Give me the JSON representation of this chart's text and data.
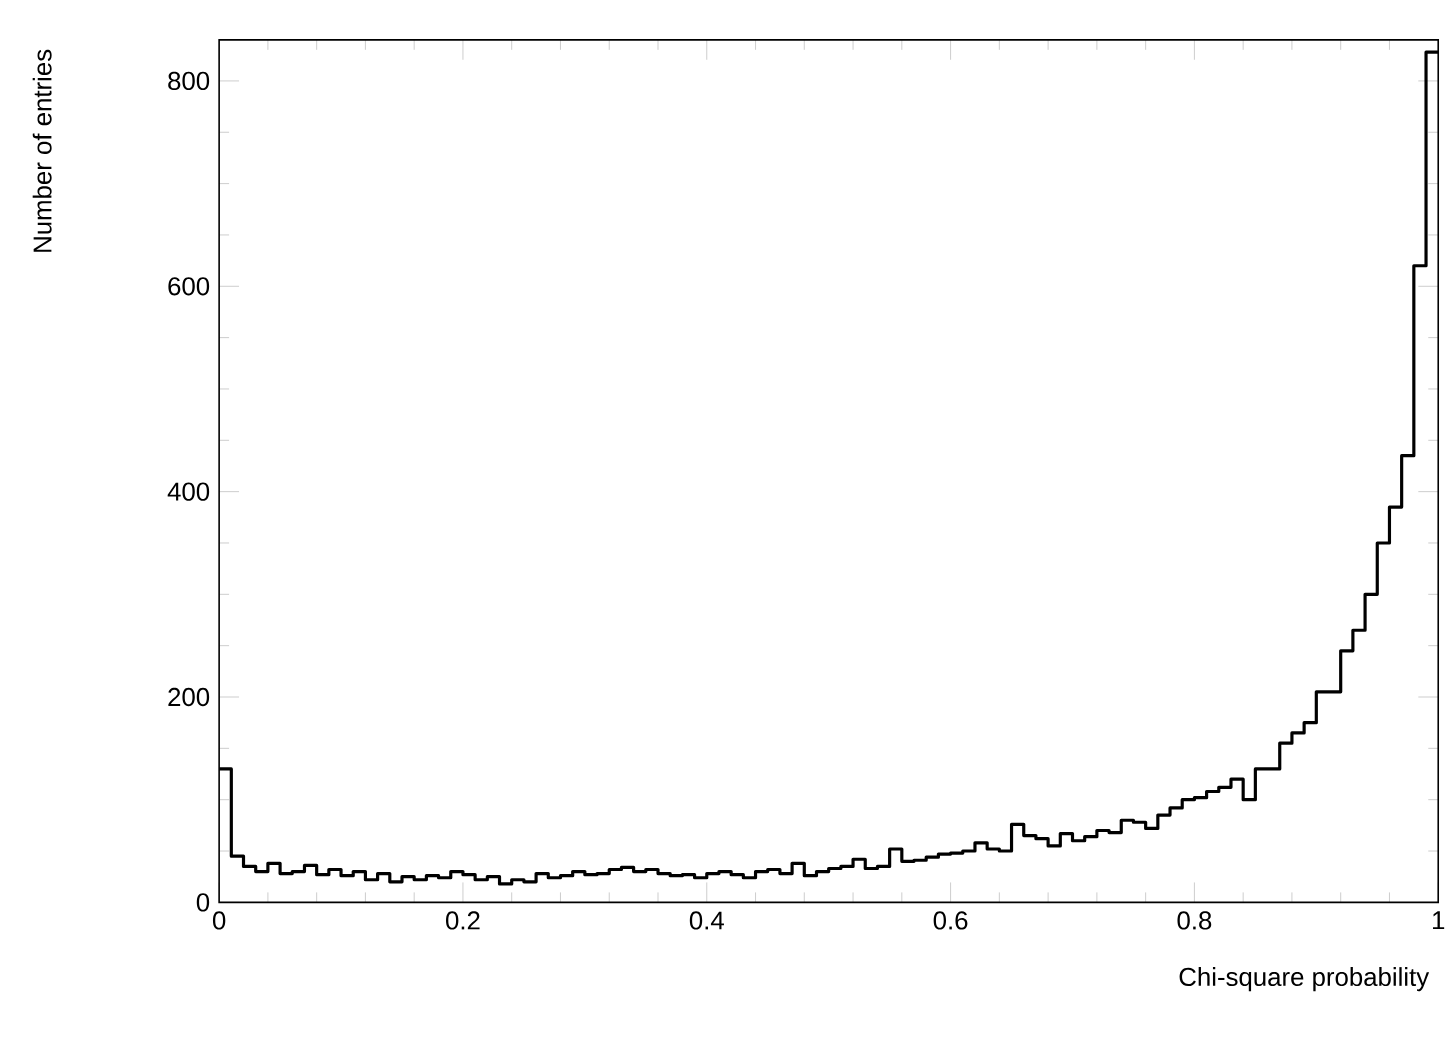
{
  "chart_data": {
    "type": "histogram",
    "xlabel": "Chi-square probability",
    "ylabel": "Number of entries",
    "bins": [
      0,
      0.01,
      0.02,
      0.03,
      0.04,
      0.05,
      0.06,
      0.07,
      0.08,
      0.09,
      0.1,
      0.11,
      0.12,
      0.13,
      0.14,
      0.15,
      0.16,
      0.17,
      0.18,
      0.19,
      0.2,
      0.21,
      0.22,
      0.23,
      0.24,
      0.25,
      0.26,
      0.27,
      0.28,
      0.29,
      0.3,
      0.31,
      0.32,
      0.33,
      0.34,
      0.35,
      0.36,
      0.37,
      0.38,
      0.39,
      0.4,
      0.41,
      0.42,
      0.43,
      0.44,
      0.45,
      0.46,
      0.47,
      0.48,
      0.49,
      0.5,
      0.51,
      0.52,
      0.53,
      0.54,
      0.55,
      0.56,
      0.57,
      0.58,
      0.59,
      0.6,
      0.61,
      0.62,
      0.63,
      0.64,
      0.65,
      0.66,
      0.67,
      0.68,
      0.69,
      0.7,
      0.71,
      0.72,
      0.73,
      0.74,
      0.75,
      0.76,
      0.77,
      0.78,
      0.79,
      0.8,
      0.81,
      0.82,
      0.83,
      0.84,
      0.85,
      0.86,
      0.87,
      0.88,
      0.89,
      0.9,
      0.91,
      0.92,
      0.93,
      0.94,
      0.95,
      0.96,
      0.97,
      0.98,
      0.99,
      1
    ],
    "values": [
      130,
      45,
      35,
      30,
      38,
      28,
      30,
      36,
      27,
      32,
      26,
      30,
      22,
      28,
      20,
      25,
      22,
      26,
      24,
      30,
      27,
      22,
      25,
      18,
      22,
      20,
      28,
      24,
      26,
      30,
      27,
      28,
      32,
      34,
      30,
      32,
      28,
      26,
      27,
      24,
      28,
      30,
      27,
      24,
      30,
      32,
      28,
      38,
      26,
      30,
      33,
      35,
      42,
      33,
      35,
      52,
      40,
      41,
      44,
      47,
      48,
      50,
      58,
      52,
      50,
      76,
      65,
      62,
      55,
      67,
      60,
      64,
      70,
      68,
      80,
      78,
      72,
      85,
      92,
      100,
      102,
      108,
      112,
      120,
      100,
      130,
      130,
      155,
      165,
      175,
      205,
      205,
      245,
      265,
      300,
      350,
      385,
      435,
      620,
      828
    ],
    "color": "#000000",
    "xlim": [
      0,
      1
    ],
    "ylim": [
      0,
      840
    ],
    "xticks": [
      0,
      0.2,
      0.4,
      0.6,
      0.8,
      1
    ],
    "yticks": [
      0,
      200,
      400,
      600,
      800
    ]
  }
}
